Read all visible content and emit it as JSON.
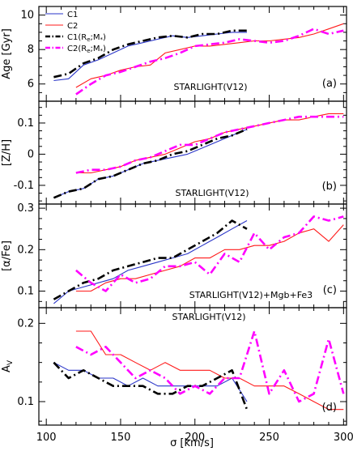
{
  "chart_data": {
    "type": "line",
    "xlabel": "σ [km/s]",
    "xlim": [
      95,
      302
    ],
    "xticks": [
      100,
      150,
      200,
      250,
      300
    ],
    "legend": {
      "placement": "top-left of panel (a)",
      "entries": [
        {
          "label": "C1",
          "color": "#2a35c8",
          "dash": "solid",
          "width": "thin"
        },
        {
          "label": "C2",
          "color": "#ff1a1a",
          "dash": "solid",
          "width": "thin"
        },
        {
          "label": "C1(R_e;M_*)",
          "color": "#000000",
          "dash": "dashdot",
          "width": "thick"
        },
        {
          "label": "C2(R_e;M_*)",
          "color": "#ff00ff",
          "dash": "dashdot",
          "width": "thick"
        }
      ]
    },
    "panels": [
      {
        "tag": "(a)",
        "note": "STARLIGHT(V12)",
        "ylabel": "Age [Gyr]",
        "ylim": [
          5.0,
          10.5
        ],
        "yticks": [
          6,
          8,
          10
        ],
        "series": [
          {
            "name": "C1",
            "x": [
              105,
              115,
              125,
              135,
              145,
              155,
              165,
              175,
              185,
              195,
              205,
              215,
              225,
              235
            ],
            "y": [
              6.2,
              6.3,
              7.1,
              7.4,
              7.8,
              8.2,
              8.4,
              8.6,
              8.8,
              8.7,
              8.8,
              8.9,
              9.0,
              9.0
            ]
          },
          {
            "name": "C2",
            "x": [
              120,
              130,
              140,
              150,
              160,
              170,
              180,
              190,
              200,
              210,
              220,
              230,
              240,
              250,
              260,
              270,
              280,
              290,
              300
            ],
            "y": [
              5.8,
              6.3,
              6.5,
              6.8,
              7.0,
              7.1,
              7.8,
              8.0,
              8.2,
              8.2,
              8.3,
              8.4,
              8.5,
              8.5,
              8.6,
              8.7,
              8.9,
              9.2,
              9.5
            ]
          },
          {
            "name": "C1(R_e;M_*)",
            "x": [
              105,
              115,
              125,
              135,
              145,
              155,
              165,
              175,
              185,
              195,
              205,
              215,
              225,
              235
            ],
            "y": [
              6.4,
              6.6,
              7.2,
              7.5,
              8.0,
              8.3,
              8.5,
              8.7,
              8.8,
              8.7,
              8.9,
              8.9,
              9.1,
              9.1
            ]
          },
          {
            "name": "C2(R_e;M_*)",
            "x": [
              120,
              130,
              140,
              150,
              160,
              170,
              180,
              190,
              200,
              210,
              220,
              230,
              240,
              250,
              260,
              270,
              280,
              290,
              300
            ],
            "y": [
              5.4,
              6.0,
              6.5,
              6.7,
              7.0,
              7.3,
              7.5,
              7.8,
              8.2,
              8.3,
              8.4,
              8.6,
              8.5,
              8.4,
              8.5,
              8.8,
              9.2,
              8.9,
              9.1
            ]
          }
        ]
      },
      {
        "tag": "(b)",
        "note": "STARLIGHT(V12)",
        "ylabel": "[Z/H]",
        "ylim": [
          -0.16,
          0.17
        ],
        "yticks": [
          -0.1,
          0,
          0.1
        ],
        "series": [
          {
            "name": "C1",
            "x": [
              105,
              115,
              125,
              135,
              145,
              155,
              165,
              175,
              185,
              195,
              205,
              215,
              225,
              235
            ],
            "y": [
              -0.14,
              -0.12,
              -0.11,
              -0.08,
              -0.07,
              -0.05,
              -0.03,
              -0.02,
              -0.01,
              0.0,
              0.02,
              0.04,
              0.06,
              0.08
            ]
          },
          {
            "name": "C2",
            "x": [
              120,
              130,
              140,
              150,
              160,
              170,
              180,
              190,
              200,
              210,
              220,
              230,
              240,
              250,
              260,
              270,
              280,
              290,
              300
            ],
            "y": [
              -0.06,
              -0.06,
              -0.05,
              -0.04,
              -0.02,
              -0.01,
              0.0,
              0.02,
              0.04,
              0.05,
              0.07,
              0.08,
              0.09,
              0.1,
              0.11,
              0.11,
              0.12,
              0.13,
              0.13
            ]
          },
          {
            "name": "C1(R_e;M_*)",
            "x": [
              105,
              115,
              125,
              135,
              145,
              155,
              165,
              175,
              185,
              195,
              205,
              215,
              225,
              235
            ],
            "y": [
              -0.14,
              -0.12,
              -0.11,
              -0.08,
              -0.07,
              -0.05,
              -0.03,
              -0.02,
              0.0,
              0.01,
              0.03,
              0.05,
              0.06,
              0.08
            ]
          },
          {
            "name": "C2(R_e;M_*)",
            "x": [
              120,
              130,
              140,
              150,
              160,
              170,
              180,
              190,
              200,
              210,
              220,
              230,
              240,
              250,
              260,
              270,
              280,
              290,
              300
            ],
            "y": [
              -0.06,
              -0.05,
              -0.05,
              -0.04,
              -0.02,
              -0.01,
              0.01,
              0.03,
              0.03,
              0.05,
              0.07,
              0.08,
              0.09,
              0.1,
              0.11,
              0.12,
              0.12,
              0.12,
              0.12
            ]
          }
        ]
      },
      {
        "tag": "(c)",
        "note": "STARLIGHT(V12)+Mgb+Fe3",
        "ylabel": "[α/Fe]",
        "ylim": [
          0.06,
          0.31
        ],
        "yticks": [
          0.1,
          0.2,
          0.3
        ],
        "series": [
          {
            "name": "C1",
            "x": [
              105,
              115,
              125,
              135,
              145,
              155,
              165,
              175,
              185,
              195,
              205,
              215,
              225,
              235
            ],
            "y": [
              0.07,
              0.1,
              0.11,
              0.12,
              0.13,
              0.15,
              0.16,
              0.17,
              0.18,
              0.19,
              0.21,
              0.23,
              0.25,
              0.27
            ]
          },
          {
            "name": "C2",
            "x": [
              120,
              130,
              140,
              150,
              160,
              170,
              180,
              190,
              200,
              210,
              220,
              230,
              240,
              250,
              260,
              270,
              280,
              290,
              300
            ],
            "y": [
              0.1,
              0.1,
              0.12,
              0.13,
              0.13,
              0.14,
              0.15,
              0.16,
              0.18,
              0.18,
              0.2,
              0.2,
              0.21,
              0.21,
              0.22,
              0.24,
              0.25,
              0.22,
              0.26
            ]
          },
          {
            "name": "C1(R_e;M_*)",
            "x": [
              105,
              115,
              125,
              135,
              145,
              155,
              165,
              175,
              185,
              195,
              205,
              215,
              225,
              235
            ],
            "y": [
              0.08,
              0.1,
              0.12,
              0.13,
              0.15,
              0.16,
              0.17,
              0.18,
              0.18,
              0.2,
              0.22,
              0.24,
              0.27,
              0.25
            ]
          },
          {
            "name": "C2(R_e;M_*)",
            "x": [
              120,
              130,
              140,
              150,
              160,
              170,
              180,
              190,
              200,
              210,
              220,
              230,
              240,
              250,
              260,
              270,
              280,
              290,
              300
            ],
            "y": [
              0.15,
              0.12,
              0.1,
              0.14,
              0.12,
              0.13,
              0.16,
              0.16,
              0.17,
              0.14,
              0.19,
              0.17,
              0.24,
              0.2,
              0.23,
              0.24,
              0.28,
              0.27,
              0.28
            ]
          }
        ]
      },
      {
        "tag": "(d)",
        "note": "STARLIGHT(V12)",
        "ylabel": "A_V",
        "ylim": [
          0.07,
          0.22
        ],
        "yticks": [
          0.1,
          0.2
        ],
        "series": [
          {
            "name": "C1",
            "x": [
              105,
              115,
              125,
              135,
              145,
              155,
              165,
              175,
              185,
              195,
              205,
              215,
              225,
              235
            ],
            "y": [
              0.15,
              0.14,
              0.14,
              0.13,
              0.13,
              0.12,
              0.13,
              0.12,
              0.12,
              0.12,
              0.12,
              0.12,
              0.13,
              0.1
            ]
          },
          {
            "name": "C2",
            "x": [
              120,
              130,
              140,
              150,
              160,
              170,
              180,
              190,
              200,
              210,
              220,
              230,
              240,
              250,
              260,
              270,
              280,
              290,
              300
            ],
            "y": [
              0.19,
              0.19,
              0.16,
              0.16,
              0.15,
              0.14,
              0.15,
              0.14,
              0.14,
              0.14,
              0.13,
              0.13,
              0.12,
              0.12,
              0.12,
              0.11,
              0.1,
              0.09,
              0.09
            ]
          },
          {
            "name": "C1(R_e;M_*)",
            "x": [
              105,
              115,
              125,
              135,
              145,
              155,
              165,
              175,
              185,
              195,
              205,
              215,
              225,
              235
            ],
            "y": [
              0.15,
              0.13,
              0.14,
              0.13,
              0.12,
              0.12,
              0.12,
              0.11,
              0.11,
              0.12,
              0.12,
              0.13,
              0.14,
              0.09
            ]
          },
          {
            "name": "C2(R_e;M_*)",
            "x": [
              120,
              130,
              140,
              150,
              160,
              170,
              180,
              190,
              200,
              210,
              220,
              230,
              240,
              250,
              260,
              270,
              280,
              290,
              300
            ],
            "y": [
              0.17,
              0.16,
              0.17,
              0.15,
              0.13,
              0.14,
              0.13,
              0.11,
              0.12,
              0.11,
              0.13,
              0.13,
              0.19,
              0.11,
              0.14,
              0.1,
              0.11,
              0.18,
              0.11
            ]
          }
        ]
      }
    ]
  }
}
